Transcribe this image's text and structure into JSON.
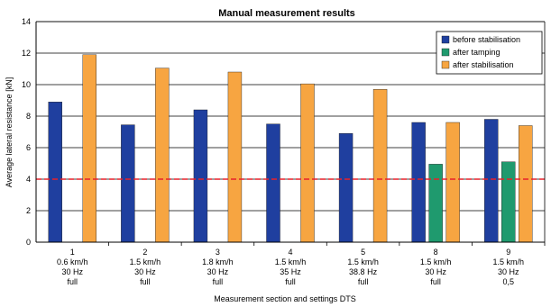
{
  "chart_data": {
    "type": "bar",
    "title": "Manual measurement results",
    "xlabel": "Measurement section and settings DTS",
    "ylabel": "Average lateral resistance [kN]",
    "ylim": [
      0,
      14
    ],
    "yticks": [
      0,
      2,
      4,
      6,
      8,
      10,
      12,
      14
    ],
    "grid": true,
    "legend_position": "top-right",
    "categories": [
      [
        "1",
        "0.6 km/h",
        "30 Hz",
        "full"
      ],
      [
        "2",
        "1.5 km/h",
        "30 Hz",
        "full"
      ],
      [
        "3",
        "1.8 km/h",
        "30 Hz",
        "full"
      ],
      [
        "4",
        "1.5 km/h",
        "35 Hz",
        "full"
      ],
      [
        "5",
        "1.5 km/h",
        "38.8 Hz",
        "full"
      ],
      [
        "8",
        "1.5 km/h",
        "30 Hz",
        "full"
      ],
      [
        "9",
        "1.5 km/h",
        "30 Hz",
        "0,5"
      ]
    ],
    "series": [
      {
        "name": "before stabilisation",
        "color": "#1f3f9f",
        "values": [
          8.9,
          7.45,
          8.4,
          7.5,
          6.9,
          7.6,
          7.8
        ]
      },
      {
        "name": "after tamping",
        "color": "#1f9a6e",
        "values": [
          null,
          null,
          null,
          null,
          null,
          4.95,
          5.1
        ]
      },
      {
        "name": "after stabilisation",
        "color": "#f7a541",
        "values": [
          11.9,
          11.05,
          10.8,
          10.05,
          9.7,
          7.6,
          7.4
        ]
      }
    ],
    "reference_line": {
      "value": 4,
      "color": "#e8202a",
      "style": "dashed"
    }
  }
}
